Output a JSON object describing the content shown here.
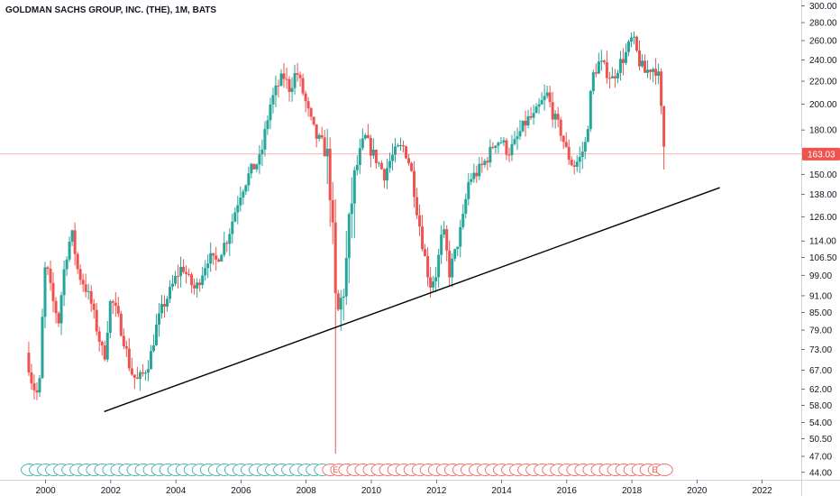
{
  "title": "GOLDMAN SACHS GROUP, INC. (THE), 1M, BATS",
  "colors": {
    "up": "#26a69a",
    "down": "#ef5350",
    "trendline": "#000000",
    "axis_text": "#131722",
    "last_price_bg": "#ef5350",
    "event_up": "#26a69a",
    "event_down": "#ef5350"
  },
  "last_price_label": "163.03",
  "chart_data": {
    "type": "candlestick",
    "scale": "log",
    "x_ticks": [
      "2000",
      "2002",
      "2004",
      "2006",
      "2008",
      "2010",
      "2012",
      "2014",
      "2016",
      "2018",
      "2020",
      "2022"
    ],
    "y_ticks": [
      "300.00",
      "280.00",
      "260.00",
      "240.00",
      "220.00",
      "200.00",
      "180.00",
      "163.03",
      "150.00",
      "138.00",
      "126.00",
      "114.00",
      "106.50",
      "99.00",
      "91.00",
      "85.00",
      "79.00",
      "73.00",
      "67.00",
      "62.00",
      "58.00",
      "54.00",
      "50.50",
      "47.00",
      "44.00"
    ],
    "ylim": [
      43,
      305
    ],
    "xlim": [
      1998.6,
      2023.2
    ],
    "last_price": 163.03,
    "trendline": {
      "start": [
        2001.8,
        56.5
      ],
      "end": [
        2020.7,
        142
      ]
    },
    "event_markers": {
      "start": 1999.5,
      "end": 2019.2,
      "step": 0.25,
      "switch_at": 2008.7,
      "labeled": [
        2008.9,
        2018.7
      ],
      "label": "E"
    },
    "ohlc_anchors": [
      [
        1999.4,
        72
      ],
      [
        1999.6,
        63
      ],
      [
        1999.8,
        60
      ],
      [
        2000.0,
        105
      ],
      [
        2000.2,
        90
      ],
      [
        2000.4,
        82
      ],
      [
        2000.6,
        105
      ],
      [
        2000.8,
        118
      ],
      [
        2001.0,
        100
      ],
      [
        2001.2,
        95
      ],
      [
        2001.4,
        88
      ],
      [
        2001.6,
        78
      ],
      [
        2001.8,
        70
      ],
      [
        2002.0,
        90
      ],
      [
        2002.2,
        84
      ],
      [
        2002.4,
        76
      ],
      [
        2002.6,
        67
      ],
      [
        2002.8,
        64
      ],
      [
        2003.0,
        66
      ],
      [
        2003.2,
        70
      ],
      [
        2003.4,
        80
      ],
      [
        2003.6,
        87
      ],
      [
        2003.8,
        92
      ],
      [
        2004.0,
        98
      ],
      [
        2004.2,
        103
      ],
      [
        2004.4,
        97
      ],
      [
        2004.6,
        93
      ],
      [
        2004.8,
        100
      ],
      [
        2005.0,
        107
      ],
      [
        2005.2,
        104
      ],
      [
        2005.4,
        110
      ],
      [
        2005.6,
        116
      ],
      [
        2005.8,
        128
      ],
      [
        2006.0,
        140
      ],
      [
        2006.3,
        152
      ],
      [
        2006.6,
        160
      ],
      [
        2006.9,
        200
      ],
      [
        2007.1,
        214
      ],
      [
        2007.3,
        225
      ],
      [
        2007.5,
        213
      ],
      [
        2007.7,
        230
      ],
      [
        2007.9,
        210
      ],
      [
        2008.1,
        190
      ],
      [
        2008.3,
        175
      ],
      [
        2008.5,
        170
      ],
      [
        2008.7,
        155
      ],
      [
        2008.8,
        120
      ],
      [
        2008.9,
        88
      ],
      [
        2009.0,
        84
      ],
      [
        2009.2,
        98
      ],
      [
        2009.4,
        135
      ],
      [
        2009.6,
        160
      ],
      [
        2009.8,
        175
      ],
      [
        2010.0,
        165
      ],
      [
        2010.2,
        158
      ],
      [
        2010.4,
        150
      ],
      [
        2010.6,
        160
      ],
      [
        2010.8,
        166
      ],
      [
        2011.0,
        168
      ],
      [
        2011.2,
        155
      ],
      [
        2011.4,
        130
      ],
      [
        2011.6,
        110
      ],
      [
        2011.8,
        95
      ],
      [
        2012.0,
        100
      ],
      [
        2012.2,
        120
      ],
      [
        2012.4,
        100
      ],
      [
        2012.6,
        110
      ],
      [
        2012.8,
        123
      ],
      [
        2013.0,
        147
      ],
      [
        2013.2,
        150
      ],
      [
        2013.4,
        155
      ],
      [
        2013.6,
        162
      ],
      [
        2013.8,
        172
      ],
      [
        2014.0,
        172
      ],
      [
        2014.2,
        164
      ],
      [
        2014.4,
        170
      ],
      [
        2014.6,
        180
      ],
      [
        2014.8,
        188
      ],
      [
        2015.0,
        190
      ],
      [
        2015.2,
        200
      ],
      [
        2015.4,
        208
      ],
      [
        2015.6,
        190
      ],
      [
        2015.8,
        180
      ],
      [
        2016.0,
        164
      ],
      [
        2016.2,
        155
      ],
      [
        2016.4,
        160
      ],
      [
        2016.6,
        172
      ],
      [
        2016.8,
        225
      ],
      [
        2017.0,
        238
      ],
      [
        2017.2,
        230
      ],
      [
        2017.4,
        222
      ],
      [
        2017.6,
        235
      ],
      [
        2017.8,
        245
      ],
      [
        2018.0,
        262
      ],
      [
        2018.1,
        255
      ],
      [
        2018.2,
        240
      ],
      [
        2018.4,
        228
      ],
      [
        2018.6,
        233
      ],
      [
        2018.8,
        230
      ],
      [
        2018.9,
        195
      ],
      [
        2019.0,
        163
      ]
    ]
  }
}
